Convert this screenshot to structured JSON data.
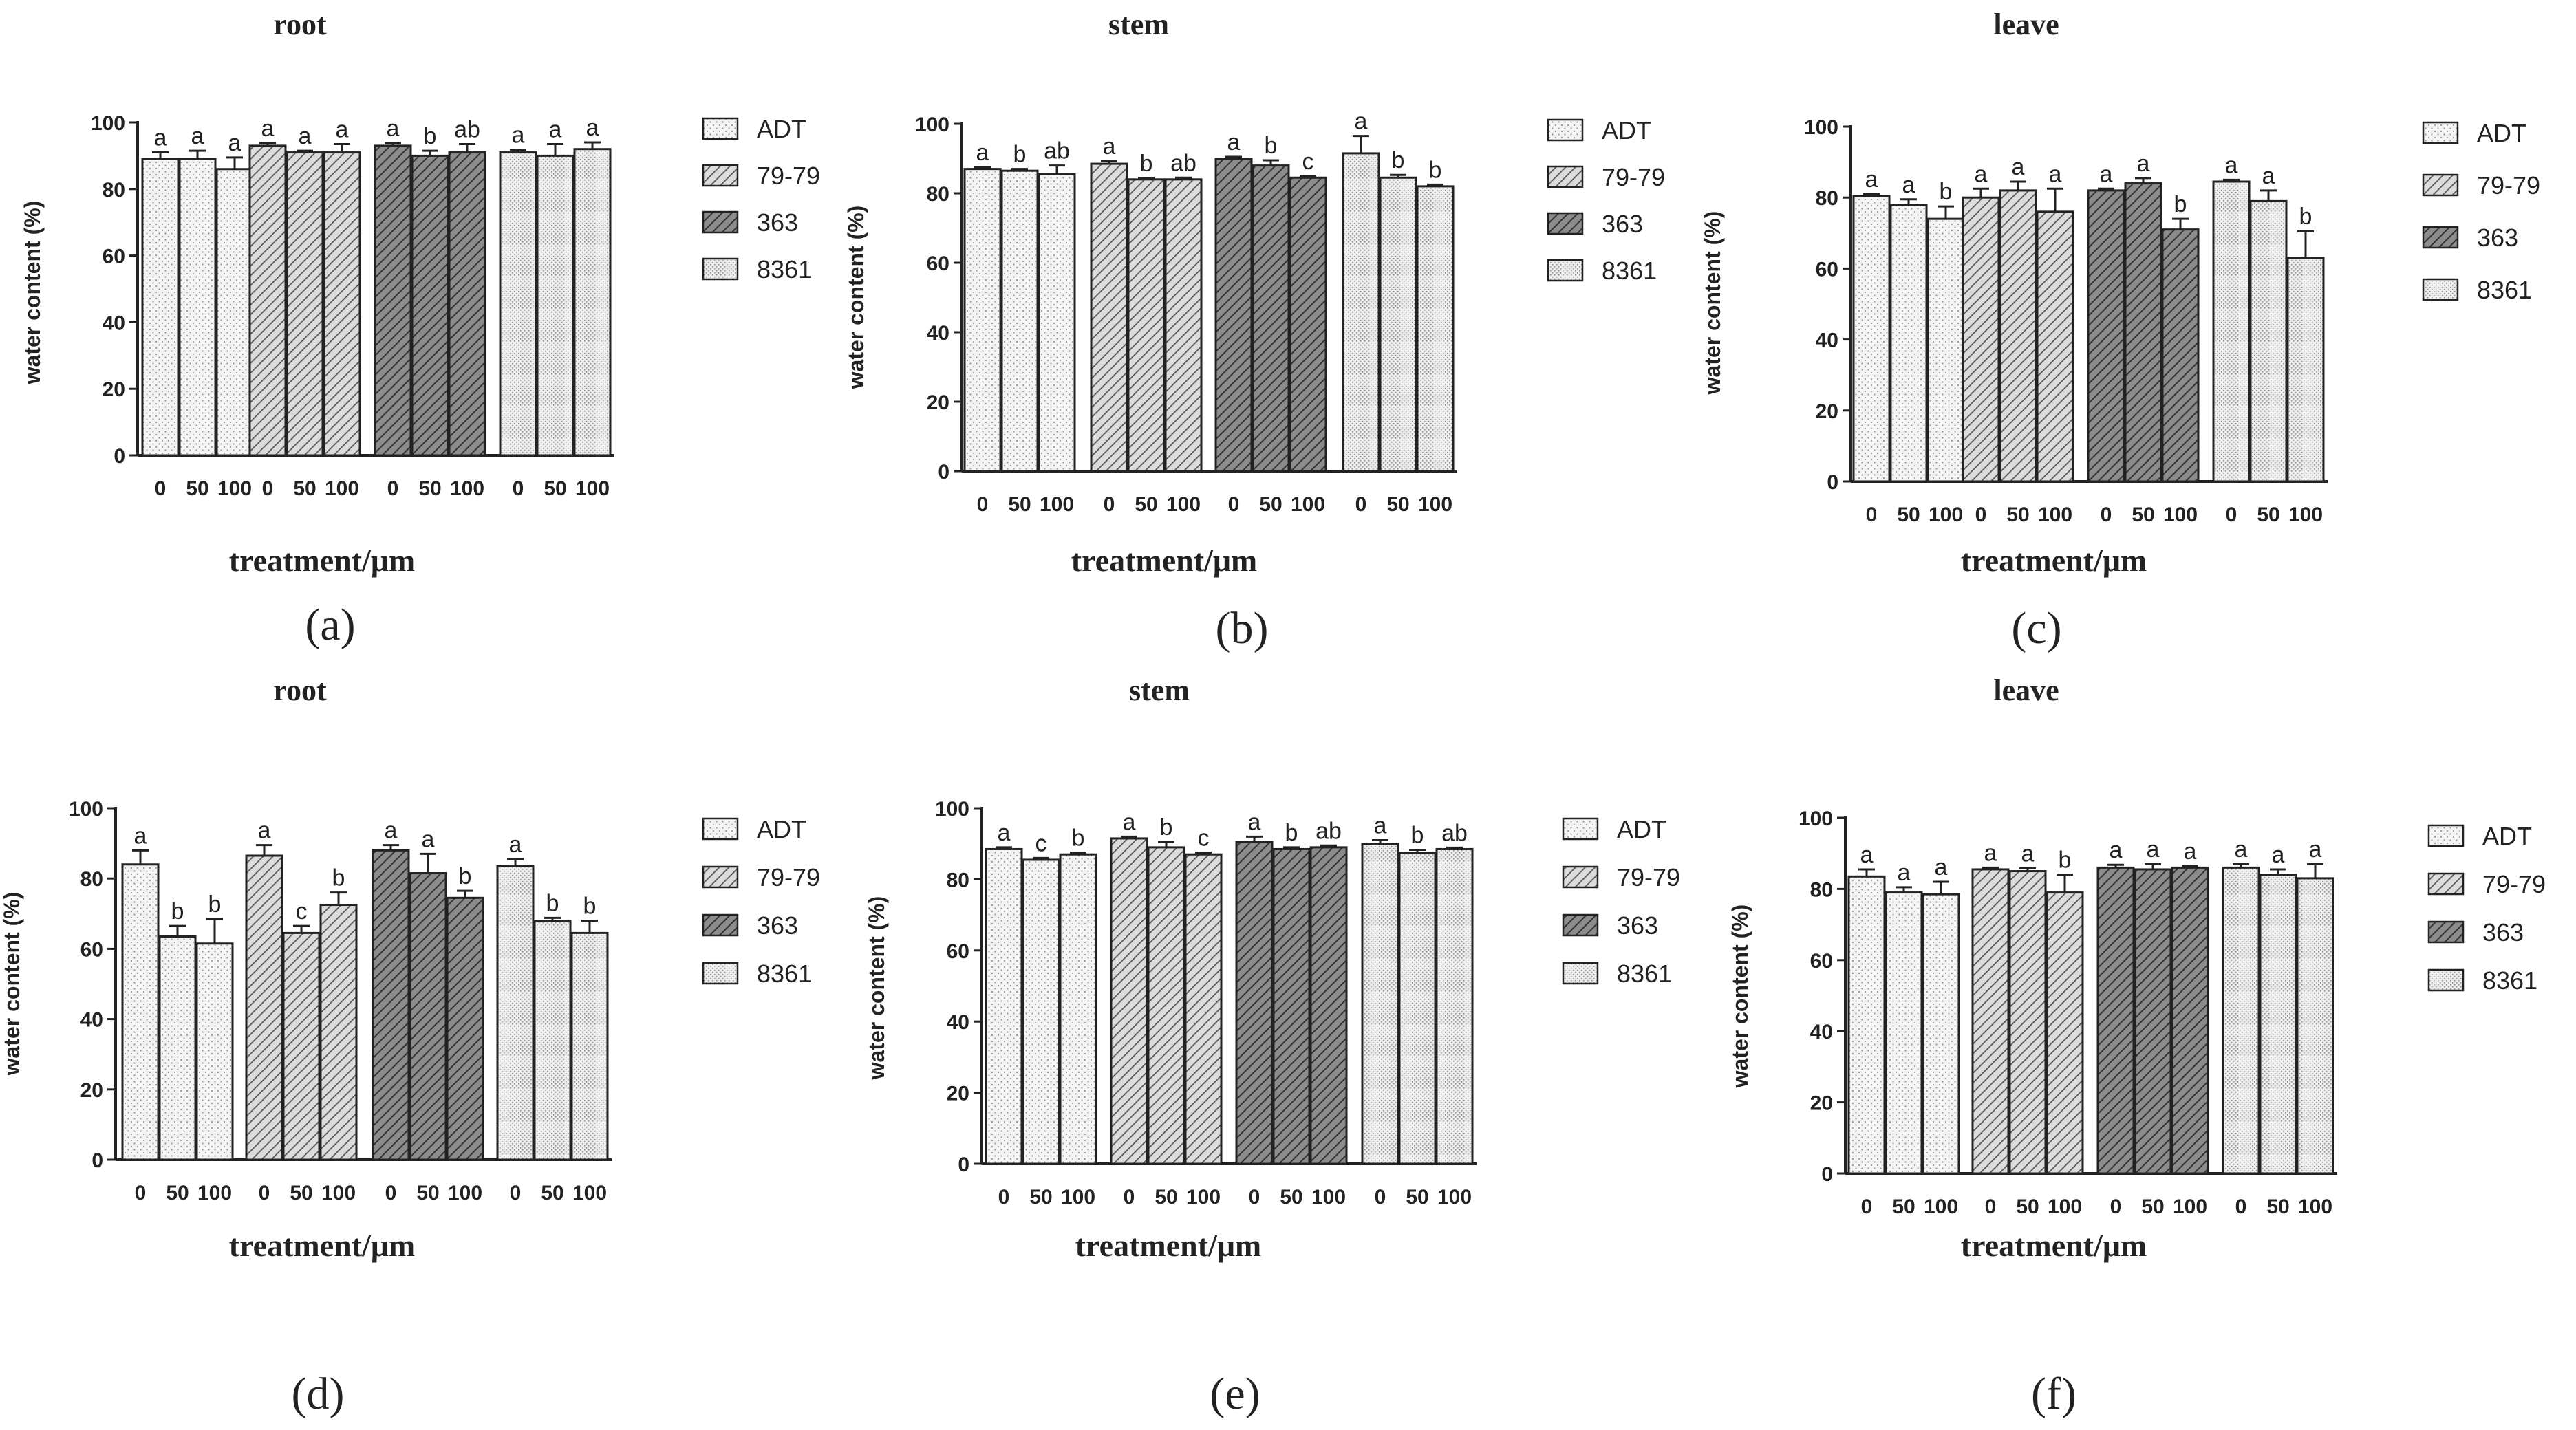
{
  "figure": {
    "panel_letters": [
      "(a)",
      "(b)",
      "(c)",
      "(d)",
      "(e)",
      "(f)"
    ]
  },
  "colors": {
    "ink": "#222222",
    "ADT_fill": "#f4f4f4",
    "g7979_fill": "#dcdcdc",
    "g363_fill": "#8c8c8c",
    "g8361_fill": "#ececec"
  },
  "chart_data": [
    {
      "type": "bar",
      "panel": "(a)",
      "title": "root",
      "xlabel": "treatment/μm",
      "ylabel": "water content (%)",
      "ylim": [
        0,
        100
      ],
      "yticks": [
        "0",
        "20",
        "40",
        "60",
        "80",
        "100"
      ],
      "categories": [
        "0",
        "50",
        "100"
      ],
      "legend": [
        "ADT",
        "79-79",
        "363",
        "8361"
      ],
      "series": [
        {
          "name": "ADT",
          "values": [
            89,
            89,
            86
          ],
          "errors": [
            2,
            2.5,
            3.5
          ],
          "letters": [
            "a",
            "a",
            "a"
          ]
        },
        {
          "name": "79-79",
          "values": [
            93,
            91,
            91
          ],
          "errors": [
            0.8,
            0.5,
            2.5
          ],
          "letters": [
            "a",
            "a",
            "a"
          ]
        },
        {
          "name": "363",
          "values": [
            93,
            90,
            91
          ],
          "errors": [
            0.8,
            1.5,
            2.5
          ],
          "letters": [
            "a",
            "b",
            "ab"
          ]
        },
        {
          "name": "8361",
          "values": [
            91,
            90,
            92
          ],
          "errors": [
            0.8,
            3.5,
            2
          ],
          "letters": [
            "a",
            "a",
            "a"
          ]
        }
      ]
    },
    {
      "type": "bar",
      "panel": "(b)",
      "title": "stem",
      "xlabel": "treatment/μm",
      "ylabel": "water content (%)",
      "ylim": [
        0,
        100
      ],
      "yticks": [
        "0",
        "20",
        "40",
        "60",
        "80",
        "100"
      ],
      "categories": [
        "0",
        "50",
        "100"
      ],
      "legend": [
        "ADT",
        "79-79",
        "363",
        "8361"
      ],
      "series": [
        {
          "name": "ADT",
          "values": [
            87,
            86.5,
            85.5
          ],
          "errors": [
            0.5,
            0.5,
            2.5
          ],
          "letters": [
            "a",
            "b",
            "ab"
          ]
        },
        {
          "name": "79-79",
          "values": [
            88.5,
            84,
            84
          ],
          "errors": [
            0.8,
            0.4,
            0.5
          ],
          "letters": [
            "a",
            "b",
            "ab"
          ]
        },
        {
          "name": "363",
          "values": [
            90,
            88,
            84.5
          ],
          "errors": [
            0.5,
            1.5,
            0.5
          ],
          "letters": [
            "a",
            "b",
            "c"
          ]
        },
        {
          "name": "8361",
          "values": [
            91.5,
            84.5,
            82
          ],
          "errors": [
            5,
            0.8,
            0.5
          ],
          "letters": [
            "a",
            "b",
            "b"
          ]
        }
      ]
    },
    {
      "type": "bar",
      "panel": "(c)",
      "title": "leave",
      "xlabel": "treatment/μm",
      "ylabel": "water content (%)",
      "ylim": [
        0,
        100
      ],
      "yticks": [
        "0",
        "20",
        "40",
        "60",
        "80",
        "100"
      ],
      "categories": [
        "0",
        "50",
        "100"
      ],
      "legend": [
        "ADT",
        "79-79",
        "363",
        "8361"
      ],
      "series": [
        {
          "name": "ADT",
          "values": [
            80.5,
            78,
            74
          ],
          "errors": [
            0.5,
            1.5,
            3.5
          ],
          "letters": [
            "a",
            "a",
            "b"
          ]
        },
        {
          "name": "79-79",
          "values": [
            80,
            82,
            76
          ],
          "errors": [
            2.5,
            2.5,
            6.5
          ],
          "letters": [
            "a",
            "a",
            "a"
          ]
        },
        {
          "name": "363",
          "values": [
            82,
            84,
            71
          ],
          "errors": [
            0.5,
            1.5,
            3
          ],
          "letters": [
            "a",
            "a",
            "b"
          ]
        },
        {
          "name": "8361",
          "values": [
            84.5,
            79,
            63
          ],
          "errors": [
            0.5,
            3,
            7.5
          ],
          "letters": [
            "a",
            "a",
            "b"
          ]
        }
      ]
    },
    {
      "type": "bar",
      "panel": "(d)",
      "title": "root",
      "xlabel": "treatment/μm",
      "ylabel": "water content (%)",
      "ylim": [
        0,
        100
      ],
      "yticks": [
        "0",
        "20",
        "40",
        "60",
        "80",
        "100"
      ],
      "categories": [
        "0",
        "50",
        "100"
      ],
      "legend": [
        "ADT",
        "79-79",
        "363",
        "8361"
      ],
      "series": [
        {
          "name": "ADT",
          "values": [
            84,
            63.5,
            61.5
          ],
          "errors": [
            4,
            3,
            7
          ],
          "letters": [
            "a",
            "b",
            "b"
          ]
        },
        {
          "name": "79-79",
          "values": [
            86.5,
            64.5,
            72.5
          ],
          "errors": [
            3,
            2,
            3.5
          ],
          "letters": [
            "a",
            "c",
            "b"
          ]
        },
        {
          "name": "363",
          "values": [
            88,
            81.5,
            74.5
          ],
          "errors": [
            1.5,
            5.5,
            2
          ],
          "letters": [
            "a",
            "a",
            "b"
          ]
        },
        {
          "name": "8361",
          "values": [
            83.5,
            68,
            64.5
          ],
          "errors": [
            2,
            0.8,
            3.5
          ],
          "letters": [
            "a",
            "b",
            "b"
          ]
        }
      ]
    },
    {
      "type": "bar",
      "panel": "(e)",
      "title": "stem",
      "xlabel": "treatment/μm",
      "ylabel": "water content (%)",
      "ylim": [
        0,
        100
      ],
      "yticks": [
        "0",
        "20",
        "40",
        "60",
        "80",
        "100"
      ],
      "categories": [
        "0",
        "50",
        "100"
      ],
      "legend": [
        "ADT",
        "79-79",
        "363",
        "8361"
      ],
      "series": [
        {
          "name": "ADT",
          "values": [
            88.5,
            85.5,
            87
          ],
          "errors": [
            0.5,
            0.5,
            0.5
          ],
          "letters": [
            "a",
            "c",
            "b"
          ]
        },
        {
          "name": "79-79",
          "values": [
            91.5,
            89,
            87
          ],
          "errors": [
            0.5,
            1.5,
            0.5
          ],
          "letters": [
            "a",
            "b",
            "c"
          ]
        },
        {
          "name": "363",
          "values": [
            90.5,
            88.5,
            89
          ],
          "errors": [
            1.5,
            0.5,
            0.5
          ],
          "letters": [
            "a",
            "b",
            "ab"
          ]
        },
        {
          "name": "8361",
          "values": [
            90,
            87.5,
            88.5
          ],
          "errors": [
            1,
            0.8,
            0.4
          ],
          "letters": [
            "a",
            "b",
            "ab"
          ]
        }
      ]
    },
    {
      "type": "bar",
      "panel": "(f)",
      "title": "leave",
      "xlabel": "treatment/μm",
      "ylabel": "water content (%)",
      "ylim": [
        0,
        100
      ],
      "yticks": [
        "0",
        "20",
        "40",
        "60",
        "80",
        "100"
      ],
      "categories": [
        "0",
        "50",
        "100"
      ],
      "legend": [
        "ADT",
        "79-79",
        "363",
        "8361"
      ],
      "series": [
        {
          "name": "ADT",
          "values": [
            83.5,
            79,
            78.5
          ],
          "errors": [
            2,
            1.5,
            3.5
          ],
          "letters": [
            "a",
            "a",
            "a"
          ]
        },
        {
          "name": "79-79",
          "values": [
            85.5,
            85,
            79
          ],
          "errors": [
            0.5,
            0.8,
            5
          ],
          "letters": [
            "a",
            "a",
            "b"
          ]
        },
        {
          "name": "363",
          "values": [
            86,
            85.5,
            86
          ],
          "errors": [
            0.8,
            1.5,
            0.5
          ],
          "letters": [
            "a",
            "a",
            "a"
          ]
        },
        {
          "name": "8361",
          "values": [
            86,
            84,
            83
          ],
          "errors": [
            1,
            1.5,
            4
          ],
          "letters": [
            "a",
            "a",
            "a"
          ]
        }
      ]
    }
  ]
}
